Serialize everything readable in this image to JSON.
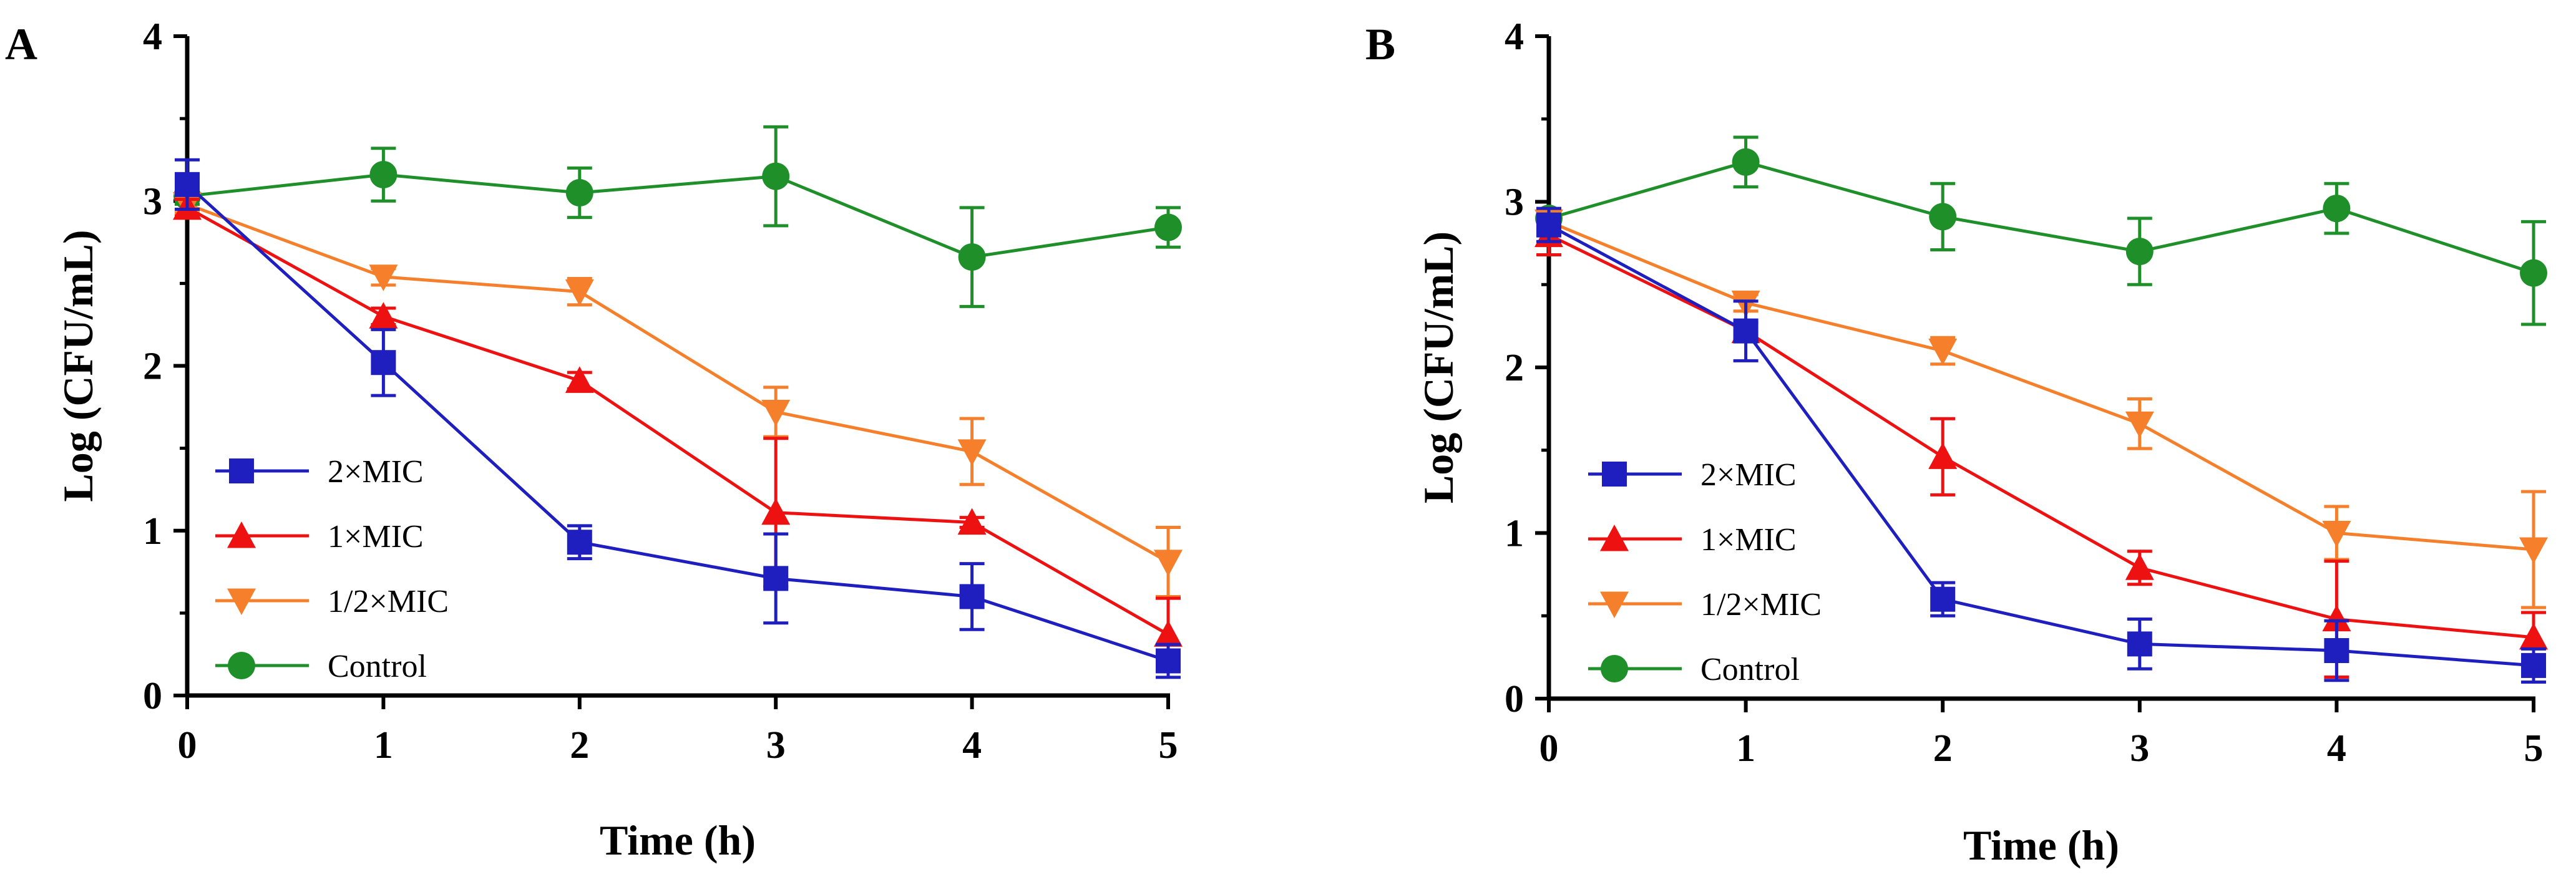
{
  "chart_data": [
    {
      "type": "line",
      "panel_label": "A",
      "xlabel": "Time (h)",
      "ylabel": "Log (CFU/mL)",
      "xlim": [
        0,
        5
      ],
      "ylim": [
        0,
        4
      ],
      "x_ticks": [
        "0",
        "1",
        "2",
        "3",
        "4",
        "5"
      ],
      "y_ticks": [
        "0",
        "1",
        "2",
        "3",
        "4"
      ],
      "x": [
        0,
        1,
        2,
        3,
        4,
        5
      ],
      "legend_position": "lower-left",
      "series": [
        {
          "name": "2×MIC",
          "color": "#1f1fbf",
          "marker": "square",
          "values": [
            3.1,
            2.02,
            0.93,
            0.71,
            0.6,
            0.21
          ],
          "errors": [
            0.15,
            0.2,
            0.1,
            0.27,
            0.2,
            0.1
          ]
        },
        {
          "name": "1×MIC",
          "color": "#ee1111",
          "marker": "triangle-up",
          "values": [
            2.96,
            2.3,
            1.91,
            1.11,
            1.05,
            0.37
          ],
          "errors": [
            0.05,
            0.05,
            0.05,
            0.45,
            0.03,
            0.22
          ]
        },
        {
          "name": "1/2×MIC",
          "color": "#f57f2a",
          "marker": "triangle-down",
          "values": [
            2.98,
            2.54,
            2.45,
            1.72,
            1.48,
            0.81
          ],
          "errors": [
            0.05,
            0.05,
            0.08,
            0.15,
            0.2,
            0.21
          ]
        },
        {
          "name": "Control",
          "color": "#1f8f2a",
          "marker": "circle",
          "values": [
            3.03,
            3.16,
            3.05,
            3.15,
            2.66,
            2.84
          ],
          "errors": [
            0.05,
            0.16,
            0.15,
            0.3,
            0.3,
            0.12
          ]
        }
      ]
    },
    {
      "type": "line",
      "panel_label": "B",
      "xlabel": "Time (h)",
      "ylabel": "Log (CFU/mL)",
      "xlim": [
        0,
        5
      ],
      "ylim": [
        0,
        4
      ],
      "x_ticks": [
        "0",
        "1",
        "2",
        "3",
        "4",
        "5"
      ],
      "y_ticks": [
        "0",
        "1",
        "2",
        "3",
        "4"
      ],
      "x": [
        0,
        1,
        2,
        3,
        4,
        5
      ],
      "legend_position": "lower-left",
      "series": [
        {
          "name": "2×MIC",
          "color": "#1f1fbf",
          "marker": "square",
          "values": [
            2.86,
            2.22,
            0.6,
            0.33,
            0.29,
            0.2
          ],
          "errors": [
            0.1,
            0.18,
            0.1,
            0.15,
            0.18,
            0.1
          ]
        },
        {
          "name": "1×MIC",
          "color": "#ee1111",
          "marker": "triangle-up",
          "values": [
            2.8,
            2.22,
            1.46,
            0.79,
            0.48,
            0.37
          ],
          "errors": [
            0.12,
            0.05,
            0.23,
            0.1,
            0.35,
            0.15
          ]
        },
        {
          "name": "1/2×MIC",
          "color": "#f57f2a",
          "marker": "triangle-down",
          "values": [
            2.88,
            2.39,
            2.1,
            1.66,
            1.0,
            0.9
          ],
          "errors": [
            0.05,
            0.05,
            0.08,
            0.15,
            0.16,
            0.35
          ]
        },
        {
          "name": "Control",
          "color": "#1f8f2a",
          "marker": "circle",
          "values": [
            2.9,
            3.24,
            2.91,
            2.7,
            2.96,
            2.57
          ],
          "errors": [
            0.05,
            0.15,
            0.2,
            0.2,
            0.15,
            0.31
          ]
        }
      ]
    }
  ]
}
